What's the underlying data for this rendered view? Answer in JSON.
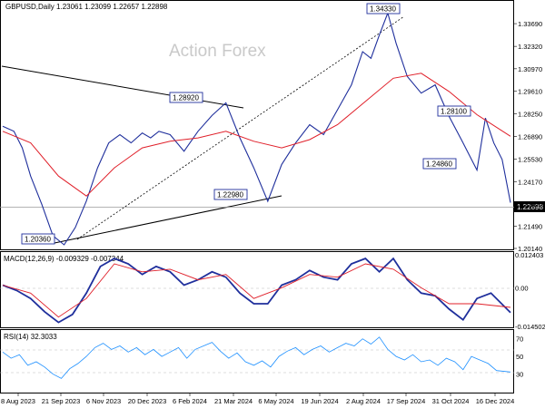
{
  "chart_data": {
    "type": "line",
    "symbol_title": "GBPUSD,Daily",
    "ohlc_text": "1.23061 1.23099 1.22657 1.22898",
    "watermark": "Action Forex",
    "current_price_label": "1.22898",
    "current_price": 1.22898,
    "x_tick_labels": [
      "8 Aug 2023",
      "21 Sep 2023",
      "6 Nov 2023",
      "20 Dec 2023",
      "6 Feb 2024",
      "21 Mar 2024",
      "6 May 2024",
      "19 Jun 2024",
      "2 Aug 2024",
      "17 Sep 2024",
      "31 Oct 2024",
      "16 Dec 2024"
    ],
    "price_panel": {
      "y_ticks": [
        1.2014,
        1.2149,
        1.2282,
        1.2417,
        1.2553,
        1.2689,
        1.2825,
        1.2961,
        1.3097,
        1.3232,
        1.3369
      ],
      "y_tick_labels": [
        "1.20140",
        "1.21490",
        "1.22820",
        "1.24170",
        "1.25530",
        "1.26890",
        "1.28250",
        "1.29610",
        "1.30970",
        "1.32320",
        "1.33690"
      ],
      "ylim": [
        1.2014,
        1.3435
      ],
      "series": [
        {
          "name": "close",
          "color": "#1f2f9c",
          "x_index": [
            0,
            8,
            14,
            20,
            28,
            36,
            44,
            52,
            60,
            68,
            76,
            84,
            92,
            100,
            106,
            112,
            120,
            130,
            140,
            150,
            160,
            170,
            180,
            190,
            200,
            210,
            220,
            230,
            240,
            250,
            258,
            264,
            270,
            276,
            282,
            290,
            300,
            310,
            320,
            330,
            340,
            346,
            352,
            358,
            364
          ],
          "values": [
            1.275,
            1.272,
            1.262,
            1.245,
            1.228,
            1.209,
            1.2036,
            1.214,
            1.23,
            1.25,
            1.265,
            1.27,
            1.265,
            1.271,
            1.268,
            1.272,
            1.27,
            1.26,
            1.272,
            1.2815,
            1.2892,
            1.268,
            1.25,
            1.2298,
            1.252,
            1.265,
            1.276,
            1.27,
            1.285,
            1.3,
            1.32,
            1.316,
            1.33,
            1.3433,
            1.325,
            1.305,
            1.295,
            1.3,
            1.281,
            1.265,
            1.2486,
            1.28,
            1.265,
            1.255,
            1.22898
          ]
        },
        {
          "name": "ma",
          "color": "#e0202a",
          "x_index": [
            0,
            20,
            40,
            60,
            80,
            100,
            120,
            140,
            160,
            180,
            200,
            220,
            240,
            260,
            280,
            300,
            320,
            340,
            364
          ],
          "values": [
            1.272,
            1.265,
            1.245,
            1.233,
            1.25,
            1.262,
            1.266,
            1.268,
            1.272,
            1.266,
            1.262,
            1.267,
            1.276,
            1.29,
            1.304,
            1.307,
            1.296,
            1.282,
            1.269
          ]
        }
      ],
      "annotations": [
        {
          "text": "1.34330",
          "value": 1.3433
        },
        {
          "text": "1.28920",
          "value": 1.2892
        },
        {
          "text": "1.28100",
          "value": 1.281
        },
        {
          "text": "1.24860",
          "value": 1.2486
        },
        {
          "text": "1.22980",
          "value": 1.2298
        },
        {
          "text": "1.20360",
          "value": 1.2036
        }
      ]
    },
    "macd_panel": {
      "title": "MACD(12,26,9) -0.009329 -0.007344",
      "y_tick_labels": [
        "0.012403",
        "0.00",
        "-0.014502"
      ],
      "ylim": [
        -0.014502,
        0.012403
      ],
      "series": [
        {
          "name": "macd",
          "color": "#1f2f9c",
          "x_index": [
            0,
            10,
            20,
            30,
            40,
            50,
            60,
            70,
            80,
            90,
            100,
            110,
            120,
            130,
            140,
            150,
            160,
            170,
            180,
            190,
            200,
            210,
            220,
            230,
            240,
            250,
            260,
            270,
            280,
            290,
            300,
            310,
            320,
            330,
            340,
            350,
            364
          ],
          "values": [
            0.001,
            -0.001,
            -0.004,
            -0.009,
            -0.013,
            -0.01,
            -0.002,
            0.008,
            0.011,
            0.009,
            0.005,
            0.008,
            0.006,
            0.001,
            0.003,
            0.006,
            0.004,
            -0.002,
            -0.006,
            -0.006,
            0.001,
            0.003,
            0.0065,
            0.004,
            0.003,
            0.009,
            0.011,
            0.006,
            0.011,
            0.003,
            -0.002,
            -0.003,
            -0.008,
            -0.012,
            -0.004,
            -0.002,
            -0.009329
          ]
        },
        {
          "name": "signal",
          "color": "#e0202a",
          "x_index": [
            0,
            20,
            40,
            60,
            80,
            100,
            120,
            140,
            160,
            180,
            200,
            220,
            240,
            260,
            280,
            300,
            320,
            340,
            364
          ],
          "values": [
            0.001,
            -0.002,
            -0.011,
            -0.004,
            0.009,
            0.006,
            0.007,
            0.003,
            0.005,
            -0.004,
            0.0,
            0.005,
            0.004,
            0.009,
            0.007,
            0.0,
            -0.006,
            -0.006,
            -0.007344
          ]
        }
      ]
    },
    "rsi_panel": {
      "title": "RSI(14) 32.3033",
      "y_tick_labels": [
        "70",
        "50",
        "30"
      ],
      "ylim": [
        10,
        80
      ],
      "series": [
        {
          "name": "rsi",
          "color": "#1e90ff",
          "x_index": [
            0,
            6,
            12,
            18,
            24,
            30,
            36,
            42,
            48,
            54,
            60,
            66,
            72,
            78,
            84,
            90,
            96,
            102,
            108,
            114,
            120,
            126,
            132,
            138,
            144,
            150,
            156,
            162,
            168,
            174,
            180,
            186,
            192,
            198,
            204,
            210,
            216,
            222,
            228,
            234,
            240,
            246,
            252,
            258,
            264,
            270,
            276,
            282,
            288,
            294,
            300,
            306,
            312,
            318,
            324,
            330,
            336,
            342,
            348,
            354,
            364
          ],
          "values": [
            55,
            48,
            52,
            40,
            44,
            38,
            30,
            25,
            36,
            42,
            50,
            60,
            65,
            58,
            62,
            55,
            60,
            52,
            58,
            50,
            55,
            60,
            48,
            58,
            62,
            66,
            56,
            48,
            54,
            44,
            40,
            45,
            38,
            50,
            56,
            60,
            52,
            58,
            62,
            55,
            60,
            65,
            62,
            70,
            64,
            72,
            58,
            50,
            46,
            52,
            44,
            46,
            40,
            48,
            44,
            35,
            50,
            46,
            42,
            34,
            32.3033
          ]
        }
      ]
    }
  }
}
